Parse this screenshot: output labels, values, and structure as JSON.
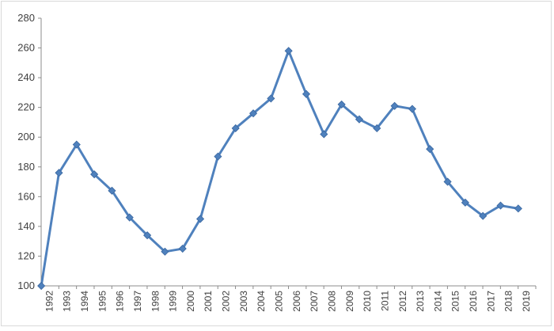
{
  "chart_data": {
    "type": "line",
    "title": "",
    "xlabel": "",
    "ylabel": "",
    "x": [
      "1992",
      "1993",
      "1994",
      "1995",
      "1996",
      "1997",
      "1998",
      "1999",
      "2000",
      "2001",
      "2002",
      "2003",
      "2004",
      "2005",
      "2006",
      "2007",
      "2008",
      "2009",
      "2010",
      "2011",
      "2012",
      "2013",
      "2014",
      "2015",
      "2016",
      "2017",
      "2018",
      "2019"
    ],
    "series": [
      {
        "values": [
          100,
          176,
          195,
          175,
          164,
          146,
          134,
          123,
          125,
          145,
          187,
          206,
          216,
          226,
          258,
          229,
          202,
          222,
          212,
          206,
          221,
          219,
          192,
          170,
          156,
          147,
          154,
          152
        ],
        "color": "#4f81bd",
        "marker": "diamond"
      }
    ],
    "ylim": [
      100,
      280
    ],
    "yticks": [
      100,
      120,
      140,
      160,
      180,
      200,
      220,
      240,
      260,
      280
    ],
    "grid": false,
    "legend": "none"
  }
}
